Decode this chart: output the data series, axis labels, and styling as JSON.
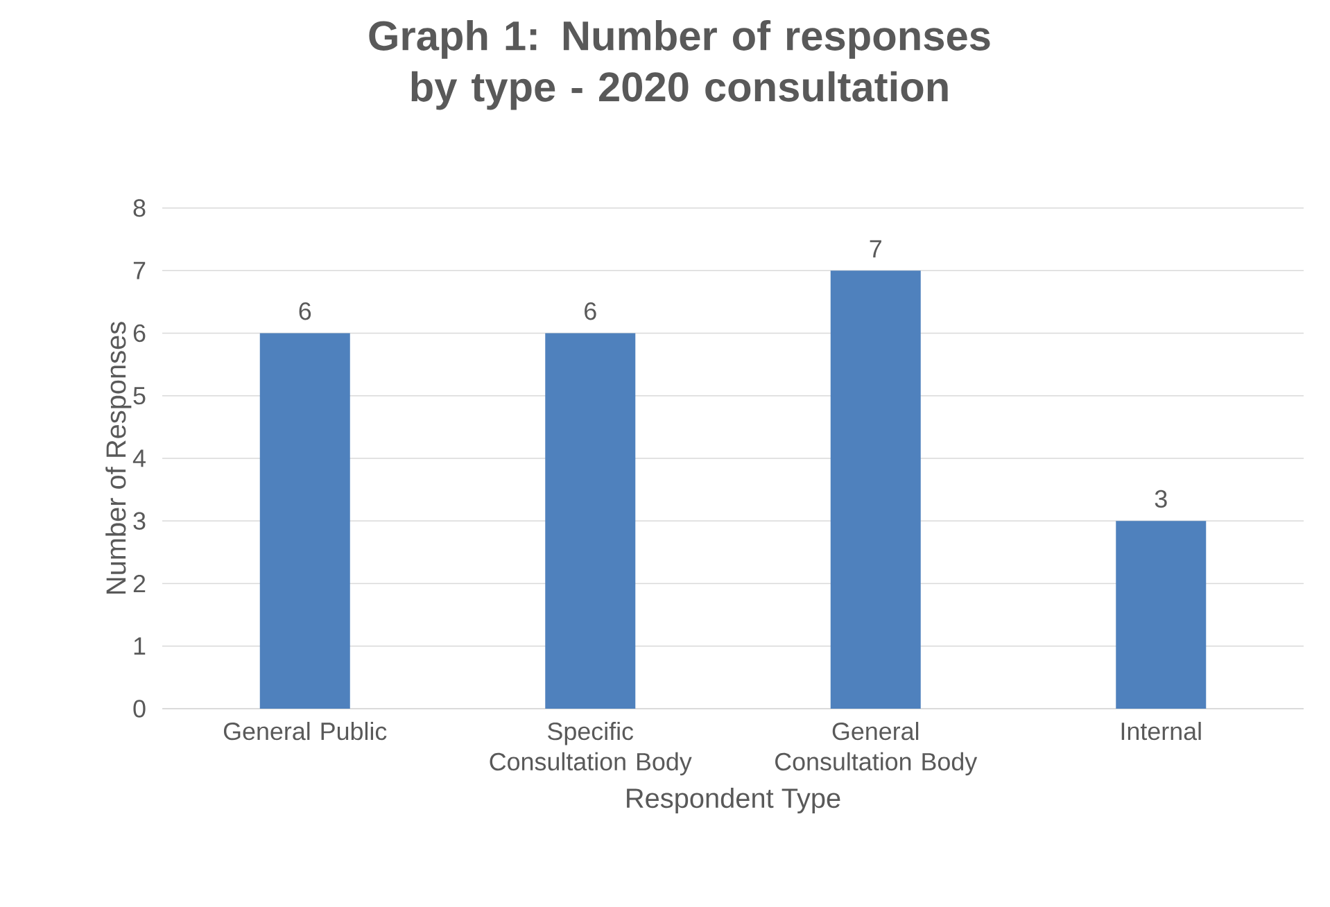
{
  "chart_data": {
    "type": "bar",
    "title": "Graph 1: Number of responses by type - 2020 consultation",
    "xlabel": "Respondent Type",
    "ylabel": "Number of Responses",
    "categories": [
      "General Public",
      "Specific Consultation Body",
      "General Consultation Body",
      "Internal"
    ],
    "values": [
      6,
      6,
      7,
      3
    ],
    "color": "#4f81bd",
    "ylim": [
      0,
      8
    ],
    "yticks": [
      0,
      1,
      2,
      3,
      4,
      5,
      6,
      7,
      8
    ],
    "grid": "y",
    "data_labels": true
  }
}
